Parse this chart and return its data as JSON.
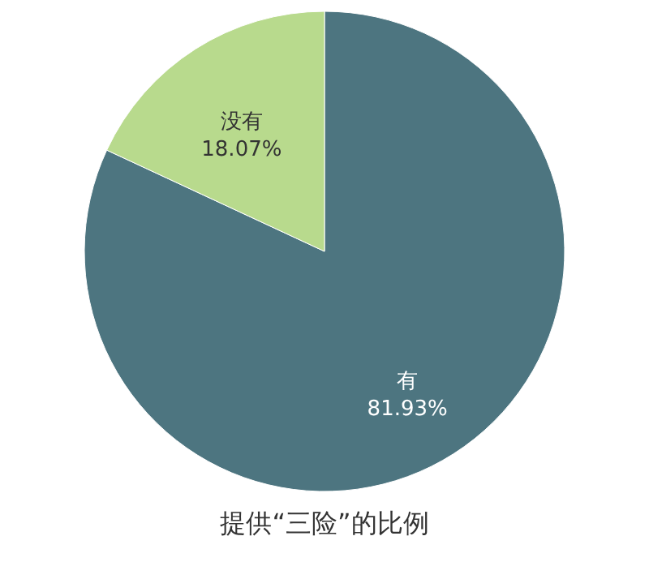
{
  "chart_data": {
    "type": "pie",
    "title": "提供“三险”的比例",
    "categories": [
      "有",
      "没有"
    ],
    "values": [
      81.93,
      18.07
    ],
    "colors": [
      "#4d7580",
      "#b8da8d"
    ],
    "value_labels": [
      "81.93%",
      "18.07%"
    ],
    "legend": false
  }
}
